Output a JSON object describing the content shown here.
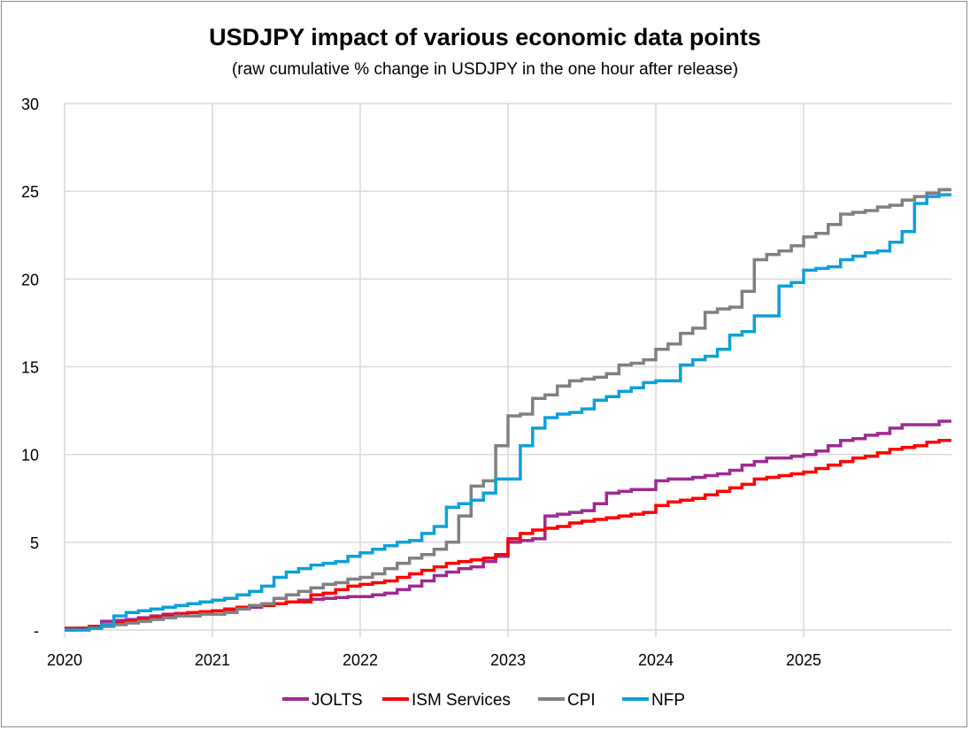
{
  "chart_data": {
    "type": "line",
    "title": "USDJPY impact of various economic data points",
    "subtitle": "(raw cumulative % change in USDJPY in the one hour after release)",
    "xlabel": "",
    "ylabel": "",
    "xlim": [
      2020,
      2026
    ],
    "ylim": [
      0,
      30
    ],
    "x_ticks": [
      "2020",
      "2021",
      "2022",
      "2023",
      "2024",
      "2025"
    ],
    "y_ticks": [
      "-",
      "5",
      "10",
      "15",
      "20",
      "25",
      "30"
    ],
    "grid": true,
    "legend_position": "bottom",
    "x_step": "monthly, Jan 2020 to Dec 2025 (step line)",
    "series": [
      {
        "name": "JOLTS",
        "color": "#9e2a93",
        "values": [
          0,
          0.1,
          0.2,
          0.5,
          0.55,
          0.6,
          0.7,
          0.8,
          0.9,
          0.95,
          1.0,
          1.0,
          1.1,
          1.1,
          1.2,
          1.3,
          1.4,
          1.5,
          1.6,
          1.7,
          1.75,
          1.8,
          1.85,
          1.9,
          1.9,
          2.0,
          2.1,
          2.3,
          2.5,
          2.8,
          3.1,
          3.3,
          3.5,
          3.6,
          3.9,
          4.2,
          5.0,
          5.1,
          5.2,
          6.5,
          6.6,
          6.7,
          6.8,
          7.2,
          7.8,
          7.9,
          8.0,
          8.0,
          8.5,
          8.6,
          8.6,
          8.7,
          8.8,
          8.9,
          9.1,
          9.4,
          9.6,
          9.8,
          9.8,
          9.9,
          10.0,
          10.2,
          10.5,
          10.8,
          10.9,
          11.1,
          11.2,
          11.5,
          11.7,
          11.7,
          11.7,
          11.9
        ]
      },
      {
        "name": "ISM Services",
        "color": "#ff0000",
        "values": [
          0.1,
          0.1,
          0.2,
          0.3,
          0.4,
          0.5,
          0.6,
          0.7,
          0.8,
          0.9,
          1.0,
          1.05,
          1.1,
          1.2,
          1.3,
          1.4,
          1.4,
          1.5,
          1.6,
          1.6,
          2.0,
          2.1,
          2.3,
          2.5,
          2.6,
          2.7,
          2.8,
          3.0,
          3.2,
          3.4,
          3.6,
          3.8,
          3.9,
          4.0,
          4.1,
          4.3,
          5.2,
          5.5,
          5.7,
          5.8,
          5.9,
          6.1,
          6.2,
          6.3,
          6.4,
          6.5,
          6.6,
          6.7,
          7.1,
          7.3,
          7.4,
          7.5,
          7.7,
          7.9,
          8.1,
          8.3,
          8.6,
          8.7,
          8.8,
          8.9,
          9.0,
          9.2,
          9.4,
          9.6,
          9.8,
          9.9,
          10.1,
          10.3,
          10.4,
          10.5,
          10.7,
          10.8
        ]
      },
      {
        "name": "CPI",
        "color": "#808080",
        "values": [
          0,
          0,
          0.1,
          0.2,
          0.3,
          0.4,
          0.5,
          0.6,
          0.7,
          0.8,
          0.8,
          0.9,
          0.9,
          1.0,
          1.2,
          1.4,
          1.5,
          1.8,
          2.0,
          2.2,
          2.4,
          2.6,
          2.7,
          2.9,
          3.0,
          3.2,
          3.5,
          3.8,
          4.1,
          4.3,
          4.6,
          5.0,
          6.5,
          8.2,
          8.5,
          10.5,
          12.2,
          12.3,
          13.2,
          13.4,
          13.9,
          14.2,
          14.3,
          14.4,
          14.6,
          15.1,
          15.2,
          15.4,
          16.0,
          16.3,
          16.9,
          17.2,
          18.1,
          18.3,
          18.4,
          19.3,
          21.1,
          21.4,
          21.6,
          21.9,
          22.4,
          22.6,
          23.1,
          23.7,
          23.8,
          23.9,
          24.1,
          24.2,
          24.5,
          24.7,
          24.9,
          25.1
        ]
      },
      {
        "name": "NFP",
        "color": "#0ea0d8",
        "values": [
          0,
          0,
          0.1,
          0.3,
          0.8,
          1.0,
          1.1,
          1.2,
          1.3,
          1.4,
          1.5,
          1.6,
          1.7,
          1.8,
          2.0,
          2.2,
          2.5,
          3.0,
          3.3,
          3.5,
          3.7,
          3.8,
          3.9,
          4.2,
          4.4,
          4.6,
          4.8,
          5.0,
          5.1,
          5.5,
          5.9,
          7.0,
          7.2,
          7.4,
          7.8,
          8.6,
          8.6,
          10.5,
          11.5,
          12.1,
          12.3,
          12.4,
          12.6,
          13.1,
          13.3,
          13.6,
          13.8,
          14.1,
          14.2,
          14.2,
          15.1,
          15.4,
          15.6,
          16.0,
          16.8,
          17.0,
          17.9,
          17.9,
          19.6,
          19.8,
          20.5,
          20.6,
          20.7,
          21.1,
          21.3,
          21.5,
          21.6,
          22.1,
          22.7,
          24.3,
          24.7,
          24.8
        ]
      }
    ]
  }
}
